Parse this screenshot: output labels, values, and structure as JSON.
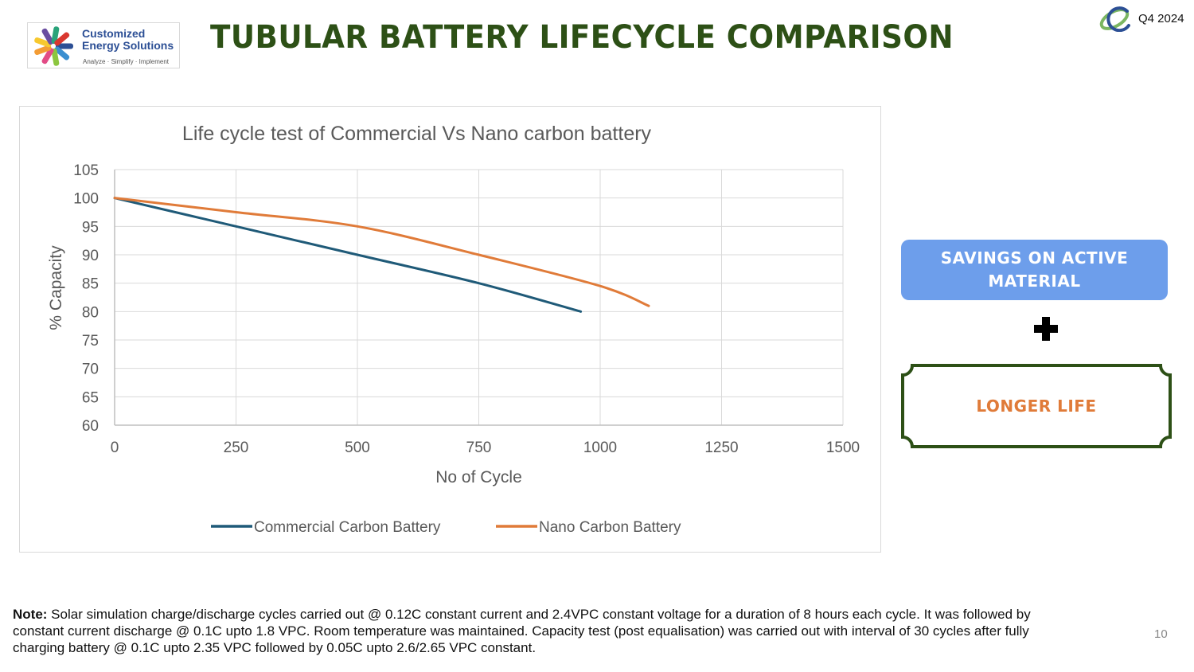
{
  "logo": {
    "brand_line1": "Customized",
    "brand_line2": "Energy Solutions",
    "tagline": "Analyze · Simplify · Implement"
  },
  "header": {
    "title": "TUBULAR BATTERY LIFECYCLE COMPARISON",
    "period": "Q4 2024"
  },
  "chart_data": {
    "type": "line",
    "title": "Life cycle test of Commercial Vs Nano carbon battery",
    "xlabel": "No of Cycle",
    "ylabel": "% Capacity",
    "xlim": [
      0,
      1500
    ],
    "ylim": [
      60,
      105
    ],
    "xticks": [
      0,
      250,
      500,
      750,
      1000,
      1250,
      1500
    ],
    "yticks": [
      60,
      65,
      70,
      75,
      80,
      85,
      90,
      95,
      100,
      105
    ],
    "grid": true,
    "legend_position": "bottom",
    "series": [
      {
        "name": "Commercial Carbon Battery",
        "color": "#1f5a78",
        "points": [
          [
            0,
            100
          ],
          [
            250,
            95
          ],
          [
            500,
            90
          ],
          [
            750,
            85
          ],
          [
            960,
            80
          ]
        ]
      },
      {
        "name": "Nano Carbon Battery",
        "color": "#e07b39",
        "points": [
          [
            0,
            100
          ],
          [
            250,
            97.5
          ],
          [
            500,
            95
          ],
          [
            750,
            90
          ],
          [
            1000,
            84.5
          ],
          [
            1100,
            81
          ]
        ]
      }
    ]
  },
  "callouts": {
    "savings": "SAVINGS ON ACTIVE MATERIAL",
    "longer_life": "LONGER LIFE"
  },
  "note": {
    "label": "Note:",
    "text": " Solar simulation charge/discharge cycles carried out @ 0.12C constant current and 2.4VPC constant voltage for a duration of 8 hours each cycle. It was followed by constant current discharge @ 0.1C upto 1.8 VPC. Room temperature was maintained. Capacity test (post equalisation)  was carried out with interval of 30 cycles after fully charging battery @ 0.1C upto 2.35 VPC followed by 0.05C upto 2.6/2.65 VPC constant."
  },
  "page_number": "10",
  "colors": {
    "title_green": "#2d5016",
    "pill_blue": "#6d9eeb",
    "accent_orange": "#e07b39"
  }
}
